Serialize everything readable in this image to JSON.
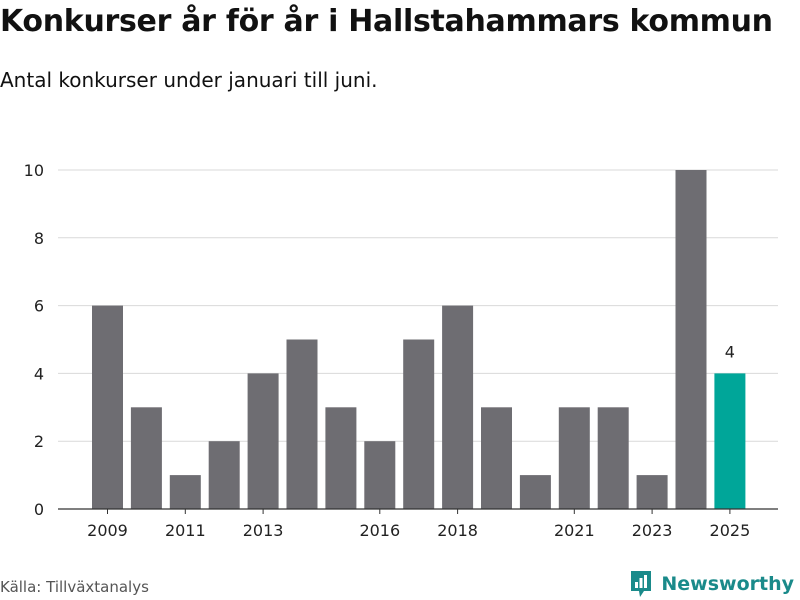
{
  "title": "Konkurser år för år i Hallstahammars kommun",
  "subtitle": "Antal konkurser under januari till juni.",
  "source": "Källa: Tillväxtanalys",
  "brand": {
    "name": "Newsworthy",
    "icon": "newsworthy-logo-icon",
    "color": "#1a8a8a"
  },
  "colors": {
    "bar": "#6e6d72",
    "highlight": "#00a699",
    "grid": "#d9d9d9",
    "axis": "#333333"
  },
  "chart_data": {
    "type": "bar",
    "title": "Konkurser år för år i Hallstahammars kommun",
    "subtitle": "Antal konkurser under januari till juni.",
    "xlabel": "",
    "ylabel": "",
    "categories": [
      "2009",
      "2010",
      "2011",
      "2012",
      "2013",
      "2014",
      "2015",
      "2016",
      "2017",
      "2018",
      "2019",
      "2020",
      "2021",
      "2022",
      "2023",
      "2024",
      "2025"
    ],
    "values": [
      6,
      3,
      1,
      2,
      4,
      5,
      3,
      2,
      5,
      6,
      3,
      1,
      3,
      3,
      1,
      10,
      4
    ],
    "highlight_category": "2025",
    "data_labels": [
      {
        "category": "2025",
        "text": "4"
      }
    ],
    "x_tick_labels": [
      "2009",
      "2011",
      "2013",
      "2016",
      "2018",
      "2021",
      "2023",
      "2025"
    ],
    "y_ticks": [
      0,
      2,
      4,
      6,
      8,
      10
    ],
    "ylim": [
      0,
      10
    ],
    "grid": true,
    "legend": "none"
  }
}
